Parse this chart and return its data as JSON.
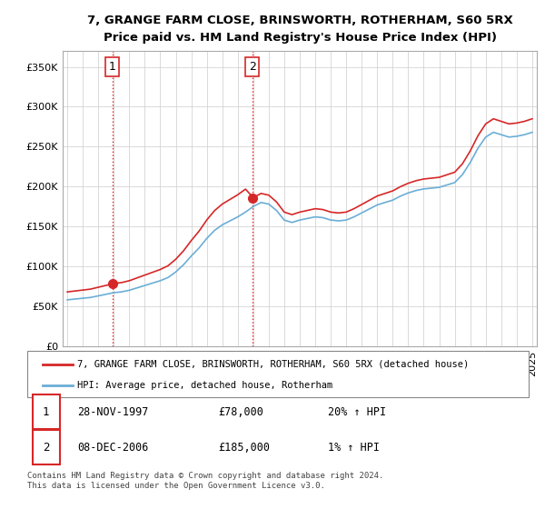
{
  "title": "7, GRANGE FARM CLOSE, BRINSWORTH, ROTHERHAM, S60 5RX",
  "subtitle": "Price paid vs. HM Land Registry's House Price Index (HPI)",
  "legend_line1": "7, GRANGE FARM CLOSE, BRINSWORTH, ROTHERHAM, S60 5RX (detached house)",
  "legend_line2": "HPI: Average price, detached house, Rotherham",
  "sale1_label": "1",
  "sale1_date": "28-NOV-1997",
  "sale1_price": "£78,000",
  "sale1_hpi": "20% ↑ HPI",
  "sale2_label": "2",
  "sale2_date": "08-DEC-2006",
  "sale2_price": "£185,000",
  "sale2_hpi": "1% ↑ HPI",
  "footnote": "Contains HM Land Registry data © Crown copyright and database right 2024.\nThis data is licensed under the Open Government Licence v3.0.",
  "hpi_color": "#6baed6",
  "price_color": "#d62728",
  "sale_marker_color": "#d62728",
  "annotation_vline_color": "#d62728",
  "annotation_vline_style": ":",
  "background_color": "#ffffff",
  "grid_color": "#cccccc",
  "ylim": [
    0,
    370000
  ],
  "yticks": [
    0,
    50000,
    100000,
    150000,
    200000,
    250000,
    300000,
    350000
  ],
  "x_start_year": 1995,
  "x_end_year": 2025,
  "sale1_year": 1997.9,
  "sale2_year": 2006.93
}
